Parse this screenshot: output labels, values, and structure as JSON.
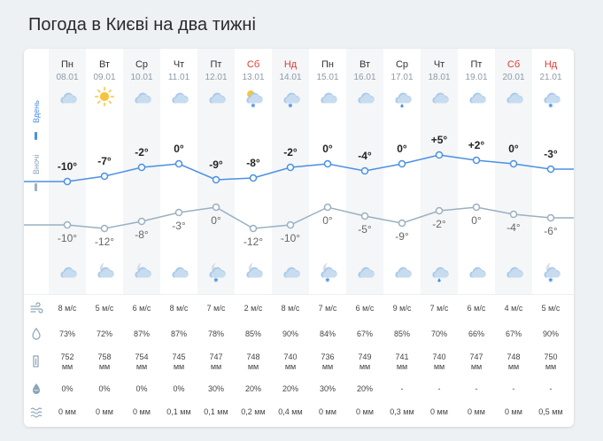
{
  "page": {
    "title": "Погода в Києві на два тижні"
  },
  "labels": {
    "day": "Вдень",
    "night": "Вночі"
  },
  "colors": {
    "day_line": "#4a90e2",
    "night_line": "#9ab0c0",
    "weekend": "#e53935"
  },
  "days": [
    {
      "name": "Пн",
      "date": "08.01",
      "weekend": false,
      "day_icon": "cloud-icon",
      "night_icon": "cloud-icon",
      "day_temp": "-10°",
      "night_temp": "-10°",
      "wind": "8 м/с",
      "humidity": "73%",
      "pressure": "752 мм",
      "precip_prob": "0%",
      "precip": "0 мм"
    },
    {
      "name": "Вт",
      "date": "09.01",
      "weekend": false,
      "day_icon": "sun-icon",
      "night_icon": "moon-cloud-icon",
      "day_temp": "-7°",
      "night_temp": "-12°",
      "wind": "5 м/с",
      "humidity": "72%",
      "pressure": "758 мм",
      "precip_prob": "0%",
      "precip": "0 мм"
    },
    {
      "name": "Ср",
      "date": "10.01",
      "weekend": false,
      "day_icon": "cloud-icon",
      "night_icon": "moon-cloud-icon",
      "day_temp": "-2°",
      "night_temp": "-8°",
      "wind": "6 м/с",
      "humidity": "87%",
      "pressure": "754 мм",
      "precip_prob": "0%",
      "precip": "0 мм"
    },
    {
      "name": "Чт",
      "date": "11.01",
      "weekend": false,
      "day_icon": "cloud-icon",
      "night_icon": "cloud-icon",
      "day_temp": "0°",
      "night_temp": "-3°",
      "wind": "8 м/с",
      "humidity": "87%",
      "pressure": "745 мм",
      "precip_prob": "0%",
      "precip": "0,1 мм"
    },
    {
      "name": "Пт",
      "date": "12.01",
      "weekend": false,
      "day_icon": "cloud-icon",
      "night_icon": "moon-snow-icon",
      "day_temp": "-9°",
      "night_temp": "0°",
      "wind": "7 м/с",
      "humidity": "78%",
      "pressure": "747 мм",
      "precip_prob": "30%",
      "precip": "0,1 мм"
    },
    {
      "name": "Сб",
      "date": "13.01",
      "weekend": true,
      "day_icon": "sun-cloud-snow-icon",
      "night_icon": "moon-cloud-icon",
      "day_temp": "-8°",
      "night_temp": "-12°",
      "wind": "2 м/с",
      "humidity": "85%",
      "pressure": "748 мм",
      "precip_prob": "20%",
      "precip": "0,2 мм"
    },
    {
      "name": "Нд",
      "date": "14.01",
      "weekend": true,
      "day_icon": "cloud-snow-icon",
      "night_icon": "cloud-icon",
      "day_temp": "-2°",
      "night_temp": "-10°",
      "wind": "8 м/с",
      "humidity": "90%",
      "pressure": "740 мм",
      "precip_prob": "20%",
      "precip": "0,4 мм"
    },
    {
      "name": "Пн",
      "date": "15.01",
      "weekend": false,
      "day_icon": "cloud-icon",
      "night_icon": "moon-snow-icon",
      "day_temp": "0°",
      "night_temp": "0°",
      "wind": "7 м/с",
      "humidity": "84%",
      "pressure": "736 мм",
      "precip_prob": "30%",
      "precip": "0 мм"
    },
    {
      "name": "Вт",
      "date": "16.01",
      "weekend": false,
      "day_icon": "cloud-icon",
      "night_icon": "cloud-icon",
      "day_temp": "-4°",
      "night_temp": "-5°",
      "wind": "6 м/с",
      "humidity": "67%",
      "pressure": "749 мм",
      "precip_prob": "20%",
      "precip": "0 мм"
    },
    {
      "name": "Ср",
      "date": "17.01",
      "weekend": false,
      "day_icon": "cloud-rain-icon",
      "night_icon": "cloud-icon",
      "day_temp": "0°",
      "night_temp": "-9°",
      "wind": "9 м/с",
      "humidity": "85%",
      "pressure": "741 мм",
      "precip_prob": "-",
      "precip": "0,3 мм"
    },
    {
      "name": "Чт",
      "date": "18.01",
      "weekend": false,
      "day_icon": "cloud-icon",
      "night_icon": "cloud-rain-icon",
      "day_temp": "+5°",
      "night_temp": "-2°",
      "wind": "7 м/с",
      "humidity": "70%",
      "pressure": "740 мм",
      "precip_prob": "-",
      "precip": "0 мм"
    },
    {
      "name": "Пт",
      "date": "19.01",
      "weekend": false,
      "day_icon": "cloud-icon",
      "night_icon": "cloud-icon",
      "day_temp": "+2°",
      "night_temp": "0°",
      "wind": "6 м/с",
      "humidity": "66%",
      "pressure": "747 мм",
      "precip_prob": "-",
      "precip": "0 мм"
    },
    {
      "name": "Сб",
      "date": "20.01",
      "weekend": true,
      "day_icon": "cloud-icon",
      "night_icon": "cloud-icon",
      "day_temp": "0°",
      "night_temp": "-4°",
      "wind": "4 м/с",
      "humidity": "67%",
      "pressure": "748 мм",
      "precip_prob": "-",
      "precip": "0 мм"
    },
    {
      "name": "Нд",
      "date": "21.01",
      "weekend": true,
      "day_icon": "cloud-snow-icon",
      "night_icon": "moon-snow-icon",
      "day_temp": "-3°",
      "night_temp": "-6°",
      "wind": "5 м/с",
      "humidity": "90%",
      "pressure": "750 мм",
      "precip_prob": "-",
      "precip": "0,5 мм"
    }
  ],
  "rows": [
    {
      "key": "wind",
      "icon": "wind-icon"
    },
    {
      "key": "humidity",
      "icon": "humidity-icon"
    },
    {
      "key": "pressure",
      "icon": "pressure-icon"
    },
    {
      "key": "precip_prob",
      "icon": "precip-probability-icon"
    },
    {
      "key": "precip",
      "icon": "precipitation-icon"
    }
  ]
}
